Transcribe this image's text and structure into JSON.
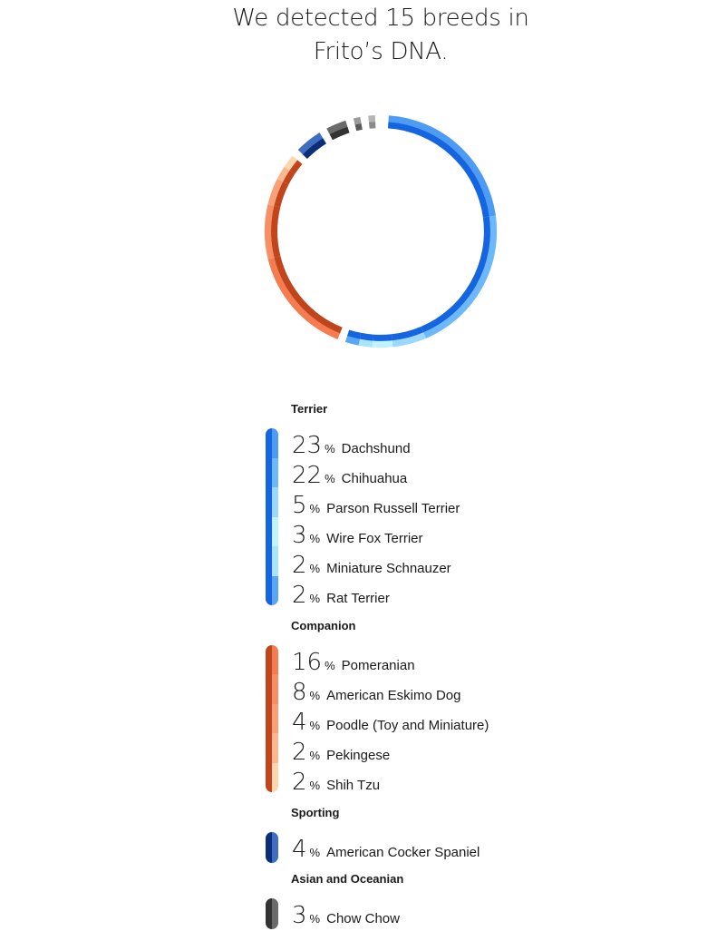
{
  "title_line1": "We detected 15 breeds in",
  "title_line2": "Frito’s DNA.",
  "chart_data": {
    "type": "donut",
    "unit": "%",
    "groups": [
      {
        "name": "Terrier",
        "color": "#1565e0",
        "breeds": [
          {
            "name": "Dachshund",
            "value": 23,
            "color": "#4d9bf2"
          },
          {
            "name": "Chihuahua",
            "value": 22,
            "color": "#6cb8f8"
          },
          {
            "name": "Parson Russell Terrier",
            "value": 5,
            "color": "#9ad8fc"
          },
          {
            "name": "Wire Fox Terrier",
            "value": 3,
            "color": "#bff4fc"
          },
          {
            "name": "Miniature Schnauzer",
            "value": 2,
            "color": "#a8e4fa"
          },
          {
            "name": "Rat Terrier",
            "value": 2,
            "color": "#5aa6f4"
          }
        ]
      },
      {
        "name": "Companion",
        "color": "#c0441c",
        "breeds": [
          {
            "name": "Pomeranian",
            "value": 16,
            "color": "#f47c50"
          },
          {
            "name": "American Eskimo Dog",
            "value": 8,
            "color": "#f68f66"
          },
          {
            "name": "Poodle (Toy and Miniature)",
            "value": 4,
            "color": "#f8a078"
          },
          {
            "name": "Pekingese",
            "value": 2,
            "color": "#fbb890"
          },
          {
            "name": "Shih Tzu",
            "value": 2,
            "color": "#fdd6b0"
          }
        ]
      },
      {
        "name": "Sporting",
        "color": "#0a2e78",
        "breeds": [
          {
            "name": "American Cocker Spaniel",
            "value": 4,
            "color": "#3f6ec0"
          }
        ]
      },
      {
        "name": "Asian and Oceanian",
        "color": "#333333",
        "breeds": [
          {
            "name": "Chow Chow",
            "value": 3,
            "color": "#6a6a6a"
          }
        ]
      }
    ],
    "unlabeled_segments": [
      {
        "value": 1,
        "color": "#5a5a5a",
        "outer_color": "#9a9a9a"
      },
      {
        "value": 1,
        "color": "#8a8a8a",
        "outer_color": "#b4b4b4"
      }
    ]
  }
}
